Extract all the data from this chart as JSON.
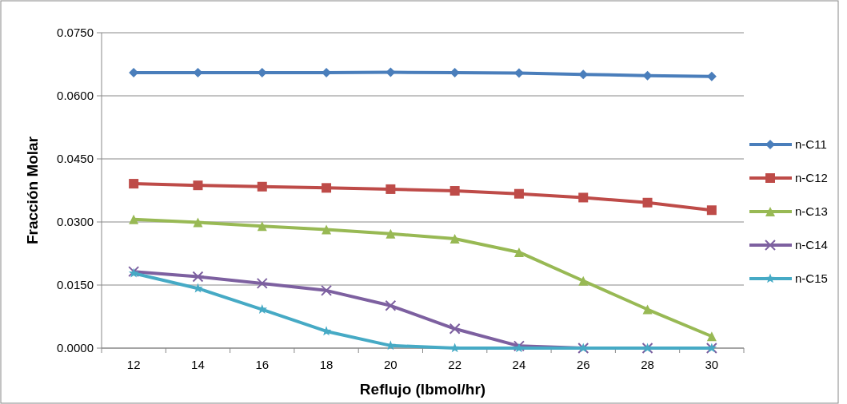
{
  "chart_data": {
    "type": "line",
    "xlabel": "Reflujo (lbmol/hr)",
    "ylabel": "Fracción Molar",
    "categories": [
      "12",
      "14",
      "16",
      "18",
      "20",
      "22",
      "24",
      "26",
      "28",
      "30"
    ],
    "ylim": [
      0,
      0.075
    ],
    "yticks": [
      {
        "value": 0,
        "label": "0.0000"
      },
      {
        "value": 0.015,
        "label": "0.0150"
      },
      {
        "value": 0.03,
        "label": "0.0300"
      },
      {
        "value": 0.045,
        "label": "0.0450"
      },
      {
        "value": 0.06,
        "label": "0.0600"
      },
      {
        "value": 0.075,
        "label": "0.0750"
      }
    ],
    "grid": "y",
    "legend": "right",
    "series": [
      {
        "name": "n-C11",
        "color": "#4a7ebb",
        "marker": "diamond",
        "values": [
          0.0655,
          0.0655,
          0.0655,
          0.0655,
          0.0656,
          0.0655,
          0.0654,
          0.0651,
          0.0648,
          0.0646
        ]
      },
      {
        "name": "n-C12",
        "color": "#be4b48",
        "marker": "square",
        "values": [
          0.0391,
          0.0387,
          0.0384,
          0.0381,
          0.0378,
          0.0374,
          0.0367,
          0.0358,
          0.0346,
          0.0328
        ]
      },
      {
        "name": "n-C13",
        "color": "#98b954",
        "marker": "triangle",
        "values": [
          0.0306,
          0.0299,
          0.029,
          0.0282,
          0.0272,
          0.026,
          0.0228,
          0.016,
          0.0092,
          0.0028
        ]
      },
      {
        "name": "n-C14",
        "color": "#7d60a0",
        "marker": "cross",
        "values": [
          0.0182,
          0.017,
          0.0154,
          0.0137,
          0.0101,
          0.0046,
          0.0005,
          0,
          0,
          0
        ]
      },
      {
        "name": "n-C15",
        "color": "#46aac5",
        "marker": "star",
        "values": [
          0.0178,
          0.0142,
          0.0092,
          0.004,
          0.0006,
          0,
          0,
          0,
          0,
          0
        ]
      }
    ]
  }
}
